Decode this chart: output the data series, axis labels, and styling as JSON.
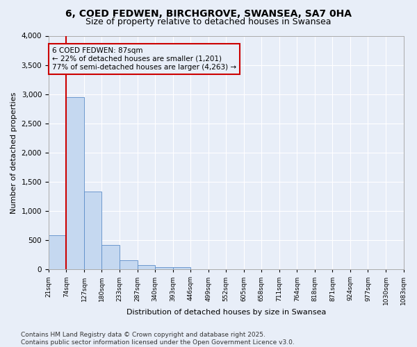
{
  "title1": "6, COED FEDWEN, BIRCHGROVE, SWANSEA, SA7 0HA",
  "title2": "Size of property relative to detached houses in Swansea",
  "xlabel": "Distribution of detached houses by size in Swansea",
  "ylabel": "Number of detached properties",
  "bar_values": [
    590,
    2950,
    1330,
    415,
    160,
    75,
    45,
    40,
    0,
    0,
    0,
    0,
    0,
    0,
    0,
    0,
    0,
    0,
    0,
    0
  ],
  "bar_labels": [
    "21sqm",
    "74sqm",
    "127sqm",
    "180sqm",
    "233sqm",
    "287sqm",
    "340sqm",
    "393sqm",
    "446sqm",
    "499sqm",
    "552sqm",
    "605sqm",
    "658sqm",
    "711sqm",
    "764sqm",
    "818sqm",
    "871sqm",
    "924sqm",
    "977sqm",
    "1030sqm",
    "1083sqm"
  ],
  "bar_color": "#c5d8f0",
  "bar_edge_color": "#5b8dc8",
  "vline_color": "#cc0000",
  "annotation_text": "6 COED FEDWEN: 87sqm\n← 22% of detached houses are smaller (1,201)\n77% of semi-detached houses are larger (4,263) →",
  "annotation_box_color": "#cc0000",
  "ylim": [
    0,
    4000
  ],
  "yticks": [
    0,
    500,
    1000,
    1500,
    2000,
    2500,
    3000,
    3500,
    4000
  ],
  "footer": "Contains HM Land Registry data © Crown copyright and database right 2025.\nContains public sector information licensed under the Open Government Licence v3.0.",
  "background_color": "#e8eef8",
  "grid_color": "#ffffff",
  "title_fontsize": 10,
  "subtitle_fontsize": 9,
  "annotation_fontsize": 7.5,
  "footer_fontsize": 6.5
}
